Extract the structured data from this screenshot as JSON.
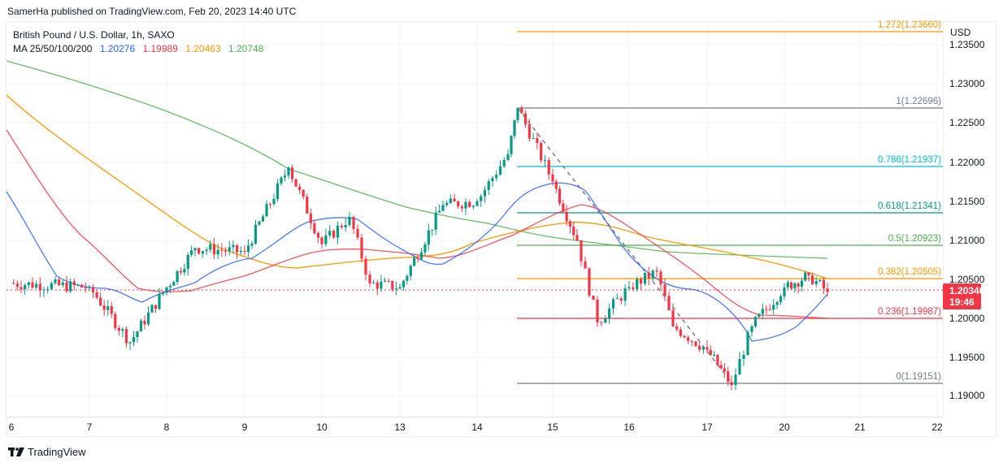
{
  "publisher": "SamerHa published on TradingView.com, Feb 20, 2023 14:40 UTC",
  "legend": {
    "title": "British Pound / U.S. Dollar, 1h, SAXO",
    "ma_label": "MA 25/50/100/200",
    "ma_values": [
      {
        "period": 25,
        "value": "1.20276",
        "color": "#2962ff"
      },
      {
        "period": 50,
        "value": "1.19989",
        "color": "#f23645"
      },
      {
        "period": 100,
        "value": "1.20463",
        "color": "#ff9800"
      },
      {
        "period": 200,
        "value": "1.20748",
        "color": "#4caf50"
      }
    ]
  },
  "y_axis": {
    "unit": "USD",
    "ticks": [
      "1.23500",
      "1.23000",
      "1.22500",
      "1.22000",
      "1.21500",
      "1.21000",
      "1.20500",
      "1.20000",
      "1.19500",
      "1.19000"
    ]
  },
  "x_axis": {
    "ticks": [
      "6",
      "7",
      "8",
      "9",
      "10",
      "13",
      "14",
      "15",
      "16",
      "17",
      "20",
      "21",
      "22"
    ]
  },
  "price_badge": {
    "price": "1.20340",
    "countdown": "19:46",
    "color": "#f23645"
  },
  "fib_levels": [
    {
      "ratio": "1.272",
      "price": "1.23660",
      "label": "1.272(1.23660)",
      "color": "#ff9800"
    },
    {
      "ratio": "1",
      "price": "1.22696",
      "label": "1(1.22696)",
      "color": "#787b86"
    },
    {
      "ratio": "0.786",
      "price": "1.21937",
      "label": "0.786(1.21937)",
      "color": "#00bcd4"
    },
    {
      "ratio": "0.618",
      "price": "1.21341",
      "label": "0.618(1.21341)",
      "color": "#089981"
    },
    {
      "ratio": "0.5",
      "price": "1.20923",
      "label": "0.5(1.20923)",
      "color": "#4caf50"
    },
    {
      "ratio": "0.382",
      "price": "1.20505",
      "label": "0.382(1.20505)",
      "color": "#ff9800"
    },
    {
      "ratio": "0.236",
      "price": "1.19987",
      "label": "0.236(1.19987)",
      "color": "#f23645"
    },
    {
      "ratio": "0",
      "price": "1.19151",
      "label": "0(1.19151)",
      "color": "#787b86"
    }
  ],
  "footer": {
    "brand": "TradingView"
  },
  "colors": {
    "up_candle": "#089981",
    "down_candle": "#f23645",
    "grid": "#f0f3fa"
  },
  "chart_data": {
    "type": "candlestick",
    "title": "British Pound / U.S. Dollar, 1h, SAXO",
    "symbol": "GBPUSD",
    "timeframe": "1h",
    "xlabel": "",
    "ylabel": "USD",
    "ylim": [
      1.1885,
      1.2375
    ],
    "x_ticks": [
      "6",
      "7",
      "8",
      "9",
      "10",
      "13",
      "14",
      "15",
      "16",
      "17",
      "20",
      "21",
      "22"
    ],
    "grid": true,
    "last_price": 1.2034,
    "indicators": [
      {
        "name": "MA 25",
        "last": 1.20276,
        "color": "#2962ff"
      },
      {
        "name": "MA 50",
        "last": 1.19989,
        "color": "#f23645"
      },
      {
        "name": "MA 100",
        "last": 1.20463,
        "color": "#ff9800"
      },
      {
        "name": "MA 200",
        "last": 1.20748,
        "color": "#4caf50"
      }
    ],
    "fibonacci_retracement": {
      "from": 1.22696,
      "to": 1.19151,
      "levels": [
        {
          "ratio": 1.272,
          "price": 1.2366
        },
        {
          "ratio": 1,
          "price": 1.22696
        },
        {
          "ratio": 0.786,
          "price": 1.21937
        },
        {
          "ratio": 0.618,
          "price": 1.21341
        },
        {
          "ratio": 0.5,
          "price": 1.20923
        },
        {
          "ratio": 0.382,
          "price": 1.20505
        },
        {
          "ratio": 0.236,
          "price": 1.19987
        },
        {
          "ratio": 0,
          "price": 1.19151
        }
      ]
    },
    "approx_path": [
      {
        "date": "6",
        "close": 1.2045
      },
      {
        "date": "7",
        "close": 1.204
      },
      {
        "date": "7.5",
        "close": 1.197
      },
      {
        "date": "8",
        "close": 1.204
      },
      {
        "date": "8.5",
        "close": 1.209
      },
      {
        "date": "9",
        "close": 1.2085
      },
      {
        "date": "9.5",
        "close": 1.2193
      },
      {
        "date": "10",
        "close": 1.2095
      },
      {
        "date": "10.3",
        "close": 1.213
      },
      {
        "date": "10.6",
        "close": 1.2045
      },
      {
        "date": "13",
        "close": 1.204
      },
      {
        "date": "13.5",
        "close": 1.2145
      },
      {
        "date": "14",
        "close": 1.215
      },
      {
        "date": "14.5",
        "close": 1.221
      },
      {
        "date": "14.5h",
        "close": 1.2269
      },
      {
        "date": "15",
        "close": 1.2175
      },
      {
        "date": "15.3",
        "close": 1.21
      },
      {
        "date": "15.6",
        "close": 1.1995
      },
      {
        "date": "16",
        "close": 1.204
      },
      {
        "date": "16.5",
        "close": 1.206
      },
      {
        "date": "16.7",
        "close": 1.199
      },
      {
        "date": "17",
        "close": 1.196
      },
      {
        "date": "17.4",
        "close": 1.1915
      },
      {
        "date": "17.6",
        "close": 1.199
      },
      {
        "date": "20",
        "close": 1.204
      },
      {
        "date": "20.4",
        "close": 1.2055
      },
      {
        "date": "20.6",
        "close": 1.2034
      }
    ]
  }
}
